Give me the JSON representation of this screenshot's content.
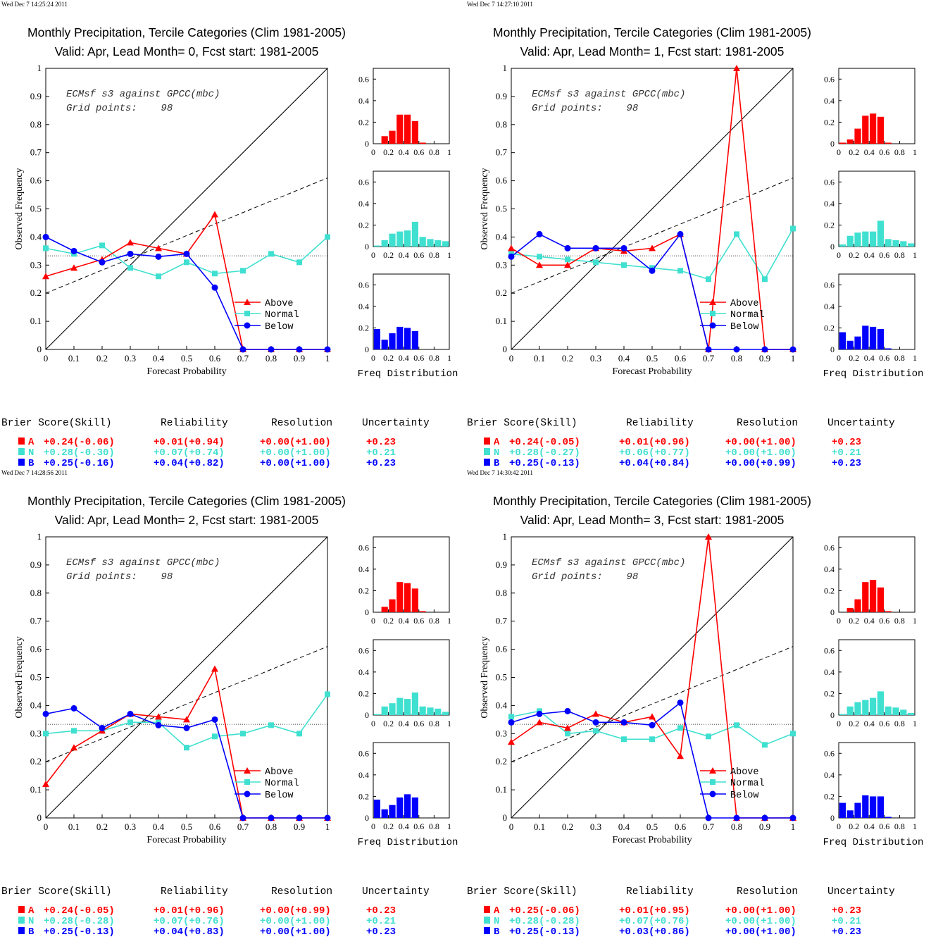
{
  "colors": {
    "above": "#ff0000",
    "normal": "#40e0d0",
    "below": "#0000ff",
    "axis": "#000000"
  },
  "panel_titles": [
    "Monthly Precipitation, Tercile Categories (Clim 1981-2005)"
  ],
  "axis_text": {
    "xlabel": "Forecast Probability",
    "ylabel": "Observed Frequency",
    "hist_label": "Freq Distribution",
    "rel_ticks": [
      "0",
      "0.1",
      "0.2",
      "0.3",
      "0.4",
      "0.5",
      "0.6",
      "0.7",
      "0.8",
      "0.9",
      "1"
    ],
    "hist_y_ticks": [
      "0",
      "0.2",
      "0.4",
      "0.6"
    ],
    "hist_x_ticks": [
      "0",
      "0.2",
      "0.4",
      "0.6",
      "0.8",
      "1"
    ]
  },
  "annotation": {
    "line1": "ECMsf s3 against GPCC(mbc)",
    "line2": "Grid points:    98"
  },
  "legend": {
    "above": "Above",
    "normal": "Normal",
    "below": "Below"
  },
  "score_headers": {
    "brier": "Brier Score(Skill)",
    "reliability": "Reliability",
    "resolution": "Resolution",
    "uncertainty": "Uncertainty"
  },
  "chart_data": [
    {
      "type": "line",
      "timestamp": "Wed Dec  7 14:25:24 2011",
      "subtitle": "Valid: Apr, Lead Month= 0, Fcst start: 1981-2005",
      "xlim": [
        0,
        1
      ],
      "ylim": [
        0,
        1
      ],
      "x": [
        0,
        0.1,
        0.2,
        0.3,
        0.4,
        0.5,
        0.6,
        0.7,
        0.8,
        0.9,
        1
      ],
      "series": [
        {
          "name": "Above",
          "values": [
            0.26,
            0.29,
            0.32,
            0.38,
            0.36,
            0.34,
            0.48,
            0,
            0,
            0,
            0
          ]
        },
        {
          "name": "Normal",
          "values": [
            0.36,
            0.34,
            0.37,
            0.29,
            0.26,
            0.31,
            0.27,
            0.28,
            0.34,
            0.31,
            0.4
          ]
        },
        {
          "name": "Below",
          "values": [
            0.4,
            0.35,
            0.31,
            0.34,
            0.33,
            0.34,
            0.22,
            0,
            0,
            0,
            0
          ]
        }
      ],
      "histograms": {
        "above": [
          0,
          0.07,
          0.12,
          0.27,
          0.27,
          0.21,
          0.01,
          0,
          0,
          0
        ],
        "normal": [
          0.01,
          0.06,
          0.12,
          0.14,
          0.15,
          0.23,
          0.09,
          0.07,
          0.06,
          0.05
        ],
        "below": [
          0.19,
          0.09,
          0.15,
          0.21,
          0.2,
          0.17,
          0,
          0,
          0,
          0
        ]
      },
      "scores": [
        {
          "cat": "A",
          "brier": "+0.24(-0.06)",
          "reliability": "+0.01(+0.94)",
          "resolution": "+0.00(+1.00)",
          "uncertainty": "+0.23"
        },
        {
          "cat": "N",
          "brier": "+0.28(-0.30)",
          "reliability": "+0.07(+0.74)",
          "resolution": "+0.00(+1.00)",
          "uncertainty": "+0.21"
        },
        {
          "cat": "B",
          "brier": "+0.25(-0.16)",
          "reliability": "+0.04(+0.82)",
          "resolution": "+0.00(+1.00)",
          "uncertainty": "+0.23"
        }
      ]
    },
    {
      "type": "line",
      "timestamp": "Wed Dec  7 14:27:10 2011",
      "subtitle": "Valid: Apr, Lead Month= 1, Fcst start: 1981-2005",
      "xlim": [
        0,
        1
      ],
      "ylim": [
        0,
        1
      ],
      "x": [
        0,
        0.1,
        0.2,
        0.3,
        0.4,
        0.5,
        0.6,
        0.7,
        0.8,
        0.9,
        1
      ],
      "series": [
        {
          "name": "Above",
          "values": [
            0.36,
            0.3,
            0.3,
            0.36,
            0.35,
            0.36,
            0.41,
            0,
            1.0,
            0,
            0
          ]
        },
        {
          "name": "Normal",
          "values": [
            0.34,
            0.33,
            0.32,
            0.31,
            0.3,
            0.29,
            0.28,
            0.25,
            0.41,
            0.25,
            0.43
          ]
        },
        {
          "name": "Below",
          "values": [
            0.33,
            0.41,
            0.36,
            0.36,
            0.36,
            0.28,
            0.41,
            0,
            0,
            0,
            0
          ]
        }
      ],
      "histograms": {
        "above": [
          0.01,
          0.04,
          0.14,
          0.26,
          0.28,
          0.25,
          0.01,
          0,
          0,
          0
        ],
        "normal": [
          0.02,
          0.1,
          0.13,
          0.14,
          0.14,
          0.24,
          0.07,
          0.06,
          0.05,
          0.03
        ],
        "below": [
          0.16,
          0.08,
          0.12,
          0.22,
          0.21,
          0.19,
          0.01,
          0,
          0,
          0
        ]
      },
      "scores": [
        {
          "cat": "A",
          "brier": "+0.24(-0.05)",
          "reliability": "+0.01(+0.96)",
          "resolution": "+0.00(+1.00)",
          "uncertainty": "+0.23"
        },
        {
          "cat": "N",
          "brier": "+0.28(-0.27)",
          "reliability": "+0.06(+0.77)",
          "resolution": "+0.00(+1.00)",
          "uncertainty": "+0.21"
        },
        {
          "cat": "B",
          "brier": "+0.25(-0.13)",
          "reliability": "+0.04(+0.84)",
          "resolution": "+0.00(+0.99)",
          "uncertainty": "+0.23"
        }
      ]
    },
    {
      "type": "line",
      "timestamp": "Wed Dec  7 14:28:56 2011",
      "subtitle": "Valid: Apr, Lead Month= 2, Fcst start: 1981-2005",
      "xlim": [
        0,
        1
      ],
      "ylim": [
        0,
        1
      ],
      "x": [
        0,
        0.1,
        0.2,
        0.3,
        0.4,
        0.5,
        0.6,
        0.7,
        0.8,
        0.9,
        1
      ],
      "series": [
        {
          "name": "Above",
          "values": [
            0.12,
            0.25,
            0.31,
            0.37,
            0.36,
            0.35,
            0.53,
            0,
            0,
            0,
            0
          ]
        },
        {
          "name": "Normal",
          "values": [
            0.3,
            0.31,
            0.31,
            0.34,
            0.34,
            0.25,
            0.29,
            0.3,
            0.33,
            0.3,
            0.44
          ]
        },
        {
          "name": "Below",
          "values": [
            0.37,
            0.39,
            0.32,
            0.37,
            0.33,
            0.32,
            0.35,
            0,
            0,
            0,
            0
          ]
        }
      ],
      "histograms": {
        "above": [
          0,
          0.05,
          0.12,
          0.28,
          0.27,
          0.22,
          0.01,
          0,
          0,
          0
        ],
        "normal": [
          0.01,
          0.08,
          0.11,
          0.16,
          0.15,
          0.21,
          0.08,
          0.07,
          0.06,
          0.03
        ],
        "below": [
          0.17,
          0.08,
          0.12,
          0.19,
          0.22,
          0.19,
          0,
          0,
          0,
          0
        ]
      },
      "scores": [
        {
          "cat": "A",
          "brier": "+0.24(-0.05)",
          "reliability": "+0.01(+0.96)",
          "resolution": "+0.00(+0.99)",
          "uncertainty": "+0.23"
        },
        {
          "cat": "N",
          "brier": "+0.28(-0.28)",
          "reliability": "+0.07(+0.76)",
          "resolution": "+0.00(+1.00)",
          "uncertainty": "+0.21"
        },
        {
          "cat": "B",
          "brier": "+0.25(-0.13)",
          "reliability": "+0.04(+0.83)",
          "resolution": "+0.00(+1.00)",
          "uncertainty": "+0.23"
        }
      ]
    },
    {
      "type": "line",
      "timestamp": "Wed Dec  7 14:30:42 2011",
      "subtitle": "Valid: Apr, Lead Month= 3, Fcst start: 1981-2005",
      "xlim": [
        0,
        1
      ],
      "ylim": [
        0,
        1
      ],
      "x": [
        0,
        0.1,
        0.2,
        0.3,
        0.4,
        0.5,
        0.6,
        0.7,
        0.8,
        0.9,
        1
      ],
      "series": [
        {
          "name": "Above",
          "values": [
            0.27,
            0.34,
            0.32,
            0.37,
            0.34,
            0.36,
            0.22,
            1.0,
            0,
            0,
            0
          ]
        },
        {
          "name": "Normal",
          "values": [
            0.36,
            0.38,
            0.3,
            0.31,
            0.28,
            0.28,
            0.32,
            0.29,
            0.33,
            0.26,
            0.3
          ]
        },
        {
          "name": "Below",
          "values": [
            0.34,
            0.37,
            0.38,
            0.34,
            0.34,
            0.33,
            0.41,
            0,
            0,
            0,
            0
          ]
        }
      ],
      "histograms": {
        "above": [
          0,
          0.04,
          0.12,
          0.28,
          0.3,
          0.23,
          0.01,
          0,
          0,
          0
        ],
        "normal": [
          0.01,
          0.08,
          0.12,
          0.14,
          0.16,
          0.22,
          0.08,
          0.07,
          0.05,
          0.02
        ],
        "below": [
          0.14,
          0.07,
          0.14,
          0.21,
          0.2,
          0.2,
          0.01,
          0,
          0,
          0
        ]
      },
      "scores": [
        {
          "cat": "A",
          "brier": "+0.25(-0.06)",
          "reliability": "+0.01(+0.95)",
          "resolution": "+0.00(+1.00)",
          "uncertainty": "+0.23"
        },
        {
          "cat": "N",
          "brier": "+0.28(-0.28)",
          "reliability": "+0.07(+0.76)",
          "resolution": "+0.00(+1.00)",
          "uncertainty": "+0.21"
        },
        {
          "cat": "B",
          "brier": "+0.25(-0.13)",
          "reliability": "+0.03(+0.86)",
          "resolution": "+0.00(+1.00)",
          "uncertainty": "+0.23"
        }
      ]
    }
  ]
}
